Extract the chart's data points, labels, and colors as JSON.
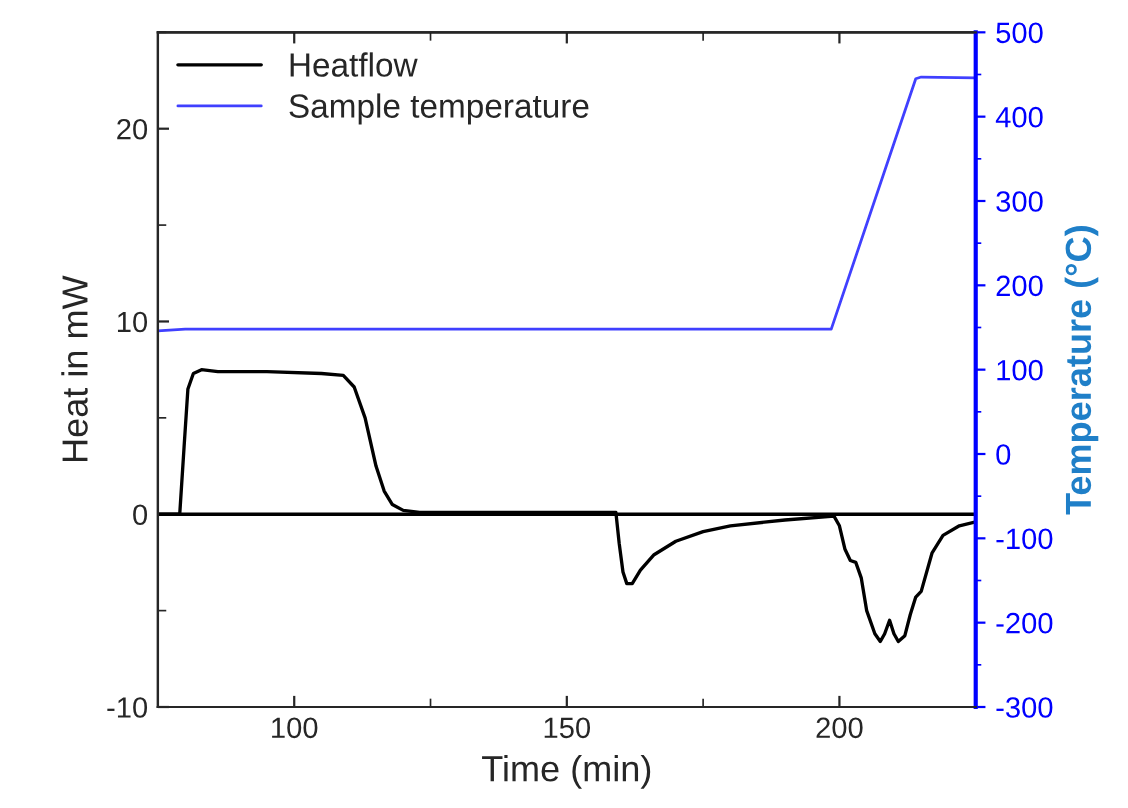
{
  "chart_data": {
    "type": "line",
    "xlabel": "Time (min)",
    "ylabel": "Heat in mW",
    "y2label": "Temperature (°C)",
    "xlim": [
      75,
      225
    ],
    "xticks": [
      100,
      150,
      200
    ],
    "ylim": [
      -10,
      25
    ],
    "yticks": [
      -10,
      0,
      10,
      20
    ],
    "y2lim": [
      -300,
      500
    ],
    "y2ticks": [
      -300,
      -200,
      -100,
      0,
      100,
      200,
      300,
      400,
      500
    ],
    "legend": "top left",
    "grid": false,
    "ref_lines": [
      {
        "axis": "y",
        "value": 0,
        "color": "#000000"
      }
    ],
    "series": [
      {
        "name": "Heatflow",
        "color": "#000000",
        "x": [
          75,
          79,
          79.8,
          80.5,
          81.5,
          83,
          86,
          95,
          105,
          109,
          111,
          113,
          115,
          116.5,
          118,
          120,
          123,
          130,
          150,
          159,
          159.6,
          160.3,
          161,
          162,
          163.5,
          166,
          170,
          175,
          180,
          190,
          199,
          200,
          201,
          202,
          203,
          204,
          205,
          206.5,
          207.5,
          208.3,
          209.2,
          210,
          210.8,
          212,
          213,
          214,
          215,
          217,
          219,
          222,
          225
        ],
        "values": [
          0,
          0,
          3.5,
          6.5,
          7.3,
          7.5,
          7.4,
          7.4,
          7.3,
          7.2,
          6.6,
          5,
          2.5,
          1.2,
          0.5,
          0.2,
          0.1,
          0.1,
          0.1,
          0.1,
          -1.5,
          -3,
          -3.6,
          -3.6,
          -2.9,
          -2.1,
          -1.4,
          -0.9,
          -0.6,
          -0.3,
          -0.1,
          -0.6,
          -1.8,
          -2.4,
          -2.5,
          -3.3,
          -5,
          -6.2,
          -6.6,
          -6.2,
          -5.5,
          -6.2,
          -6.6,
          -6.3,
          -5.2,
          -4.3,
          -4,
          -2,
          -1.1,
          -0.6,
          -0.4
        ]
      },
      {
        "name": "Sample temperature",
        "color": "#4040ff",
        "axis": "y2",
        "x": [
          75,
          80,
          198.5,
          214,
          215,
          225
        ],
        "values": [
          146,
          148,
          148,
          445,
          447,
          446
        ]
      }
    ]
  }
}
